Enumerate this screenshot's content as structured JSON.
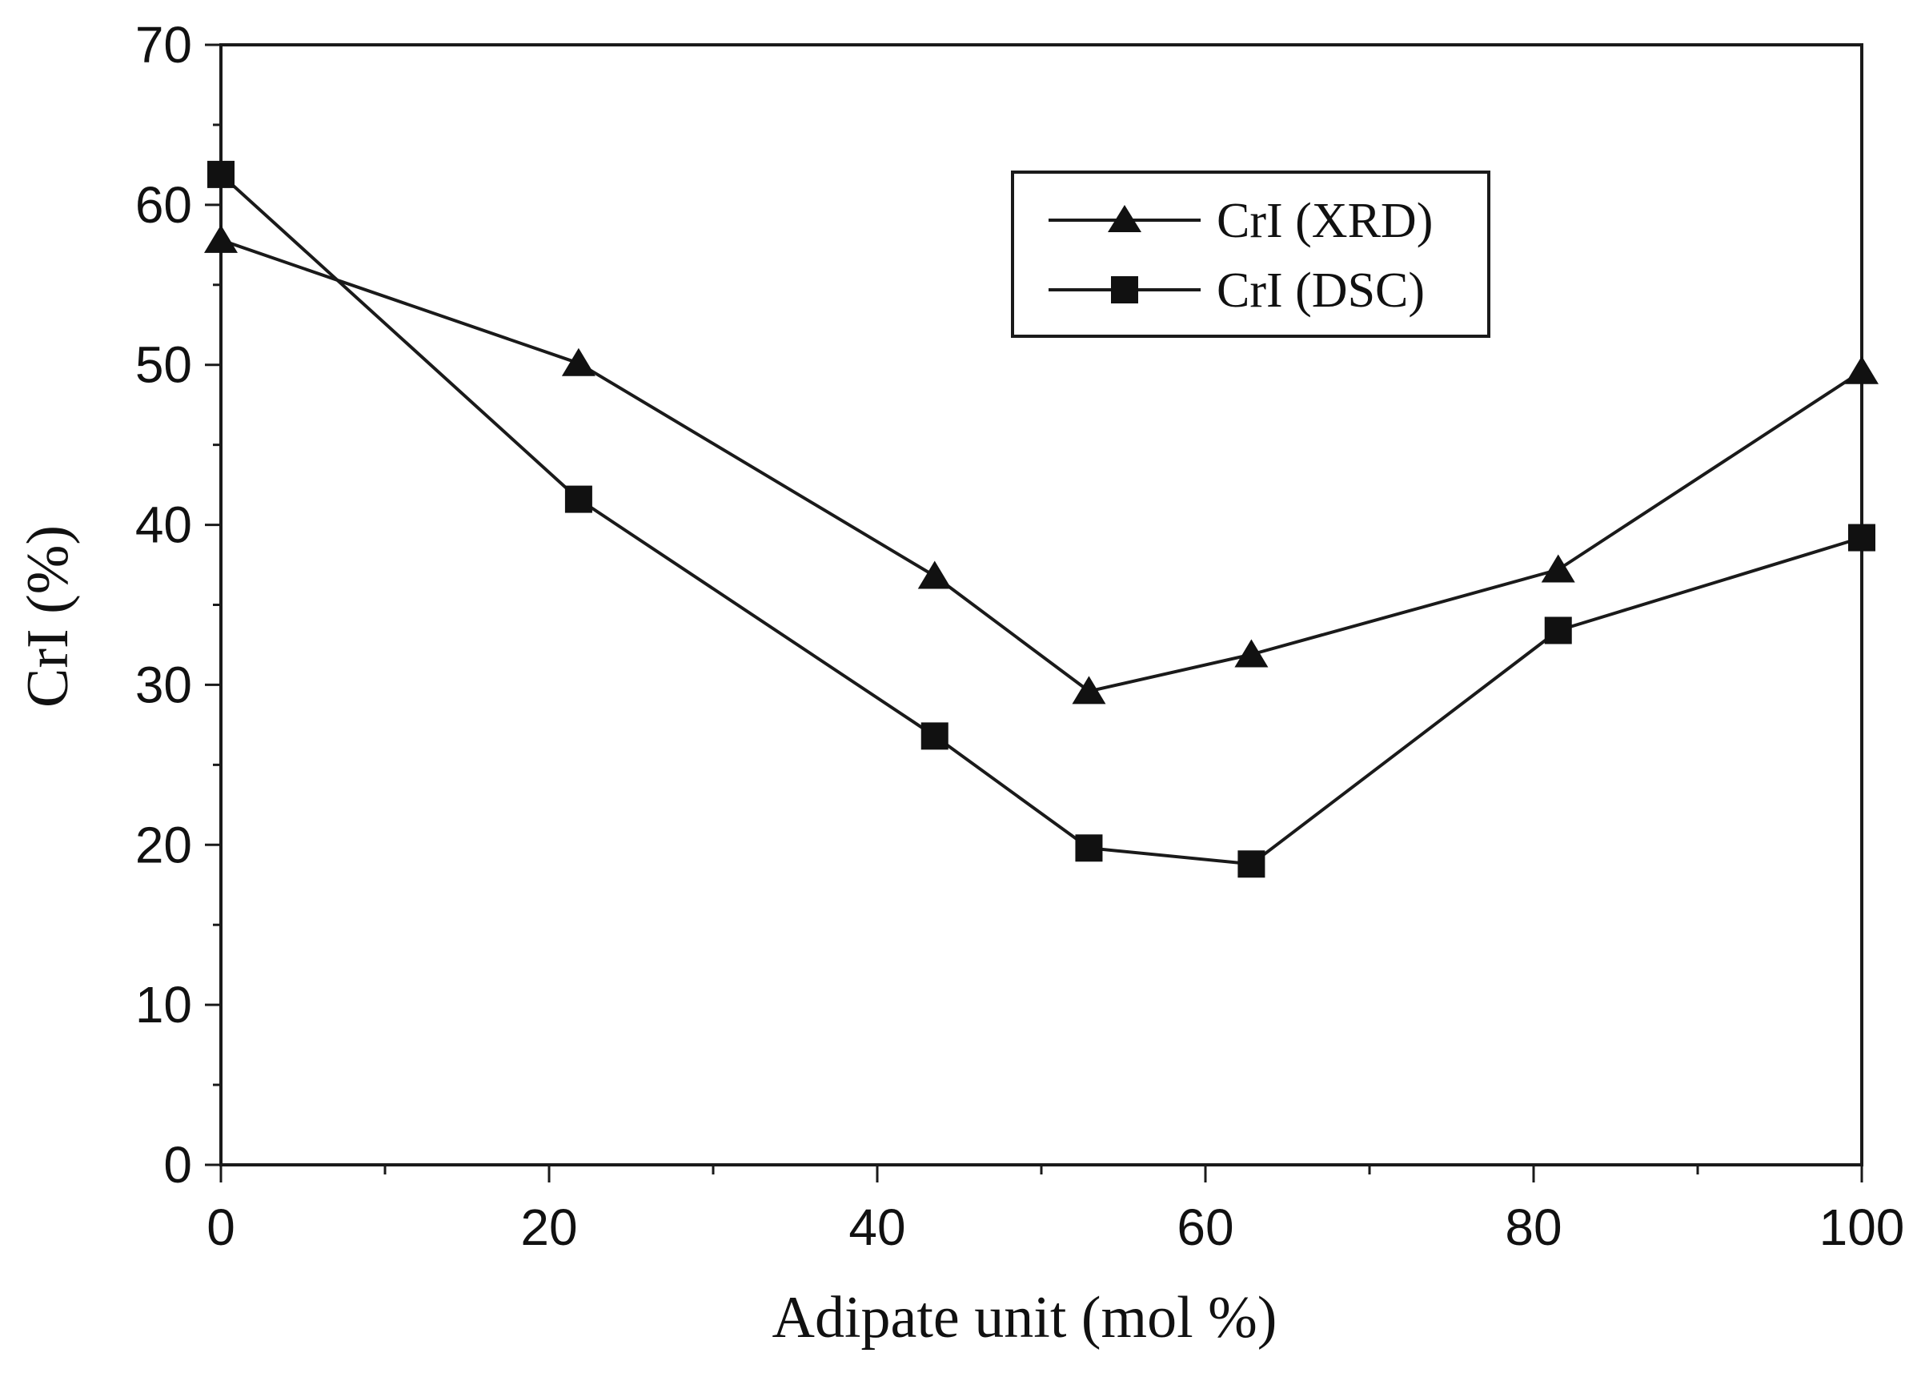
{
  "chart_data": {
    "type": "line",
    "title": "",
    "xlabel": "Adipate unit (mol %)",
    "ylabel": "CrI (%)",
    "xlim": [
      0,
      100
    ],
    "ylim": [
      0,
      70
    ],
    "xticks": [
      0,
      20,
      40,
      60,
      80,
      100
    ],
    "yticks": [
      0,
      10,
      20,
      30,
      40,
      50,
      60,
      70
    ],
    "grid": false,
    "legend_position": "top-right",
    "series": [
      {
        "name": "CrI (XRD)",
        "marker": "triangle",
        "points": [
          [
            0,
            57.8
          ],
          [
            21.8,
            50.1
          ],
          [
            43.5,
            36.8
          ],
          [
            52.9,
            29.6
          ],
          [
            62.8,
            31.9
          ],
          [
            81.5,
            37.2
          ],
          [
            100,
            49.6
          ]
        ]
      },
      {
        "name": "CrI (DSC)",
        "marker": "square",
        "points": [
          [
            0,
            61.9
          ],
          [
            21.8,
            41.6
          ],
          [
            43.5,
            26.8
          ],
          [
            52.9,
            19.8
          ],
          [
            62.8,
            18.8
          ],
          [
            81.5,
            33.4
          ],
          [
            100,
            39.2
          ]
        ]
      }
    ],
    "colors": {
      "line": "#1a1a1a",
      "marker": "#111111",
      "frame": "#1a1a1a"
    }
  }
}
